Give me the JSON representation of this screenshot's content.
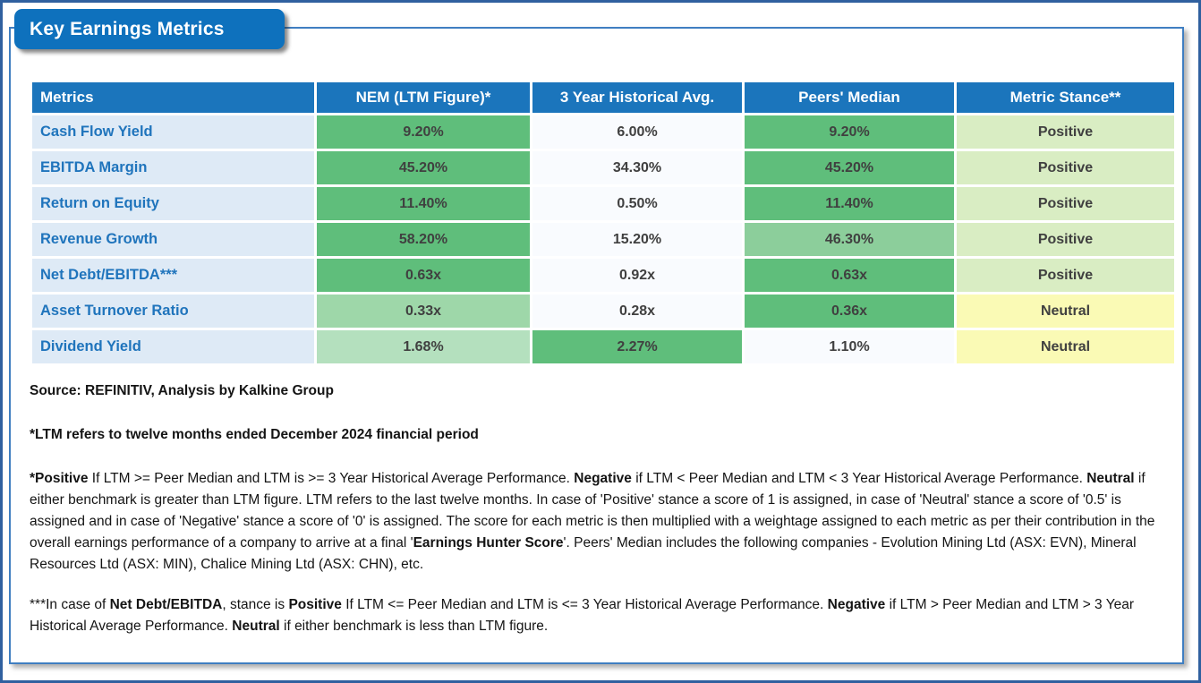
{
  "title": "Key Earnings Metrics",
  "colors": {
    "outer_border": "#30609f",
    "card_border": "#3f7ec1",
    "title_bg": "#0e71bd",
    "header_bg": "#1b75bc",
    "label_bg": "#deeaf6",
    "label_text": "#1f74bc",
    "value_text": "#404040",
    "cell": {
      "strong": "#5fbe7b",
      "medium": "#8cce9b",
      "light": "#9ed7a9",
      "lighter": "#b4e0be",
      "plain": "#f9fbfe",
      "positive": "#d9edc3",
      "neutral": "#fafab5"
    }
  },
  "table": {
    "columns": [
      {
        "label": "Metrics"
      },
      {
        "label": "NEM (LTM Figure)*"
      },
      {
        "label": "3 Year Historical Avg."
      },
      {
        "label": "Peers' Median"
      },
      {
        "label": "Metric Stance**"
      }
    ],
    "rows": [
      {
        "metric": "Cash Flow Yield",
        "nem": {
          "text": "9.20%",
          "bg": "strong"
        },
        "hist": {
          "text": "6.00%",
          "bg": "plain"
        },
        "peers": {
          "text": "9.20%",
          "bg": "strong"
        },
        "stance": {
          "text": "Positive",
          "bg": "positive"
        }
      },
      {
        "metric": "EBITDA Margin",
        "nem": {
          "text": "45.20%",
          "bg": "strong"
        },
        "hist": {
          "text": "34.30%",
          "bg": "plain"
        },
        "peers": {
          "text": "45.20%",
          "bg": "strong"
        },
        "stance": {
          "text": "Positive",
          "bg": "positive"
        }
      },
      {
        "metric": "Return on Equity",
        "nem": {
          "text": "11.40%",
          "bg": "strong"
        },
        "hist": {
          "text": "0.50%",
          "bg": "plain"
        },
        "peers": {
          "text": "11.40%",
          "bg": "strong"
        },
        "stance": {
          "text": "Positive",
          "bg": "positive"
        }
      },
      {
        "metric": "Revenue Growth",
        "nem": {
          "text": "58.20%",
          "bg": "strong"
        },
        "hist": {
          "text": "15.20%",
          "bg": "plain"
        },
        "peers": {
          "text": "46.30%",
          "bg": "medium"
        },
        "stance": {
          "text": "Positive",
          "bg": "positive"
        }
      },
      {
        "metric": "Net Debt/EBITDA***",
        "nem": {
          "text": "0.63x",
          "bg": "strong"
        },
        "hist": {
          "text": "0.92x",
          "bg": "plain"
        },
        "peers": {
          "text": "0.63x",
          "bg": "strong"
        },
        "stance": {
          "text": "Positive",
          "bg": "positive"
        }
      },
      {
        "metric": "Asset Turnover Ratio",
        "nem": {
          "text": "0.33x",
          "bg": "light"
        },
        "hist": {
          "text": "0.28x",
          "bg": "plain"
        },
        "peers": {
          "text": "0.36x",
          "bg": "strong"
        },
        "stance": {
          "text": "Neutral",
          "bg": "neutral"
        }
      },
      {
        "metric": "Dividend Yield",
        "nem": {
          "text": "1.68%",
          "bg": "lighter"
        },
        "hist": {
          "text": "2.27%",
          "bg": "strong"
        },
        "peers": {
          "text": "1.10%",
          "bg": "plain"
        },
        "stance": {
          "text": "Neutral",
          "bg": "neutral"
        }
      }
    ]
  },
  "footnotes": {
    "source_line": "Source: REFINITIV, Analysis by Kalkine Group",
    "ltm_line": "*LTM refers to twelve months ended December 2024 financial period",
    "stance_note_segments": [
      {
        "t": "*Positive",
        "b": true
      },
      {
        "t": " If LTM >= Peer Median and LTM is >= 3 Year Historical Average Performance. ",
        "b": false
      },
      {
        "t": "Negative",
        "b": true
      },
      {
        "t": " if LTM < Peer Median and LTM < 3 Year Historical Average Performance. ",
        "b": false
      },
      {
        "t": "Neutral",
        "b": true
      },
      {
        "t": " if either benchmark is greater than LTM figure. LTM refers to the last twelve months. In case of 'Positive' stance a score of 1 is assigned, in case of 'Neutral' stance a score of '0.5' is assigned and in case of 'Negative' stance a score of '0' is assigned. The score for each metric is then multiplied with a weightage assigned to each metric as per their contribution in the overall earnings performance of a company to arrive at a final '",
        "b": false
      },
      {
        "t": "Earnings Hunter Score",
        "b": true
      },
      {
        "t": "'. Peers' Median includes the following companies - Evolution Mining Ltd (ASX: EVN), Mineral Resources Ltd (ASX: MIN), Chalice Mining Ltd (ASX: CHN), etc.",
        "b": false
      }
    ],
    "netdebt_note_segments": [
      {
        "t": "***In case of ",
        "b": false
      },
      {
        "t": "Net Debt/EBITDA",
        "b": true
      },
      {
        "t": ", stance is ",
        "b": false
      },
      {
        "t": "Positive",
        "b": true
      },
      {
        "t": " If LTM <= Peer Median and LTM is <= 3 Year Historical Average Performance. ",
        "b": false
      },
      {
        "t": "Negative",
        "b": true
      },
      {
        "t": " if LTM > Peer Median and LTM > 3 Year Historical Average Performance. ",
        "b": false
      },
      {
        "t": "Neutral",
        "b": true
      },
      {
        "t": " if either benchmark is less than LTM figure.",
        "b": false
      }
    ]
  }
}
